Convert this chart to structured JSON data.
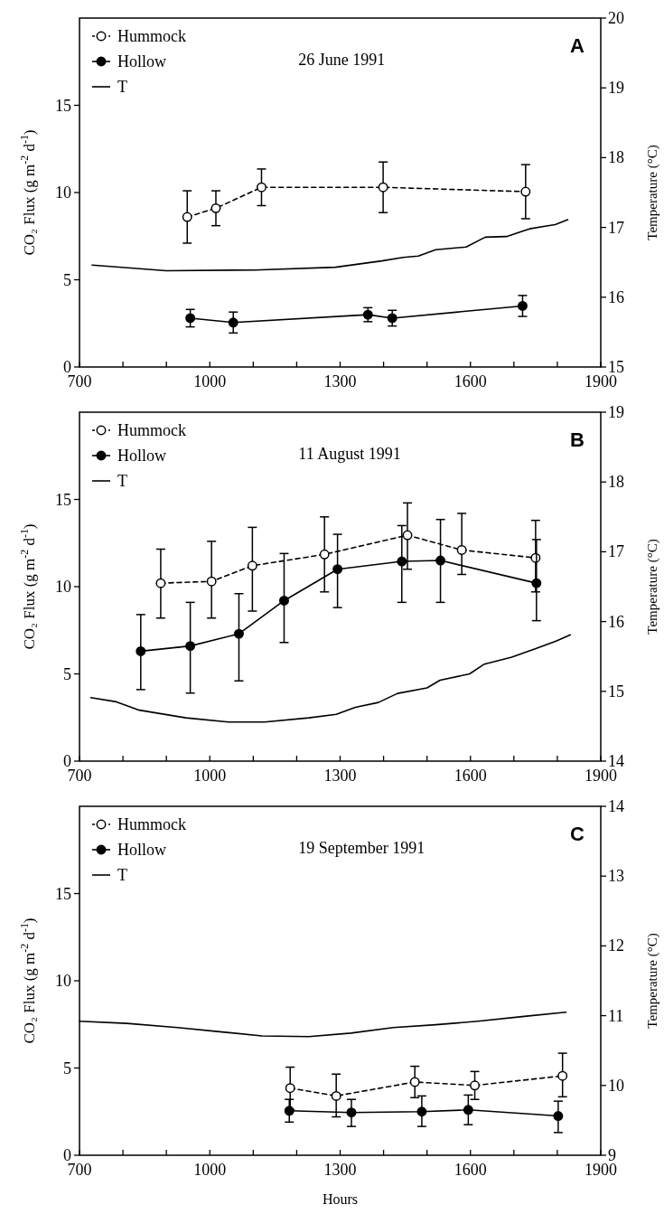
{
  "chart_data": [
    {
      "type": "line",
      "annotations": [
        "26 June 1991",
        "A"
      ],
      "ylabel": "CO₂ Flux (g m$^{-2}$ d$^{-1}$)",
      "y2label": "Temperature (°C)",
      "xlim": [
        700,
        1900
      ],
      "xticks": [
        700,
        {
          "value": 800,
          "label": null
        },
        {
          "value": 900,
          "label": null
        },
        1000,
        {
          "value": 1100,
          "label": null
        },
        {
          "value": 1200,
          "label": null
        },
        1300,
        {
          "value": 1400,
          "label": null
        },
        {
          "value": 1500,
          "label": null
        },
        1600,
        {
          "value": 1700,
          "label": null
        },
        {
          "value": 1800,
          "label": null
        },
        1900
      ],
      "ylim": [
        0,
        20
      ],
      "yticks": [
        0,
        5,
        10,
        15
      ],
      "y2lim": [
        15,
        20
      ],
      "y2ticks": [
        15,
        16,
        17,
        18,
        19,
        20
      ],
      "legend": "top left",
      "grid": false,
      "series": [
        {
          "name": "Hummock",
          "color": "#000000",
          "line_style": "dashed",
          "marker": "circle",
          "x": [
            948,
            1014,
            1119,
            1399,
            1727
          ],
          "values": [
            8.6,
            9.1,
            10.3,
            10.3,
            10.05
          ],
          "errors": [
            1.5,
            1.0,
            1.05,
            1.45,
            1.55
          ]
        },
        {
          "name": "Hollow",
          "color": "#000000",
          "line_style": "solid",
          "marker": "circle",
          "x": [
            955,
            1054,
            1364,
            1420,
            1720
          ],
          "values": [
            2.8,
            2.55,
            3.0,
            2.8,
            3.5
          ],
          "errors": [
            0.5,
            0.6,
            0.4,
            0.45,
            0.6
          ]
        },
        {
          "name": "T",
          "color": "#000000",
          "line_style": "solid",
          "marker": "none",
          "axis": "y2",
          "x": [
            729,
            900,
            1104,
            1289,
            1396,
            1445,
            1480,
            1520,
            1590,
            1634,
            1683,
            1736,
            1775,
            1795,
            1824
          ],
          "values": [
            16.46,
            16.38,
            16.39,
            16.43,
            16.52,
            16.57,
            16.59,
            16.68,
            16.72,
            16.86,
            16.87,
            16.98,
            17.02,
            17.04,
            17.11
          ]
        }
      ]
    },
    {
      "type": "line",
      "annotations": [
        "11 August 1991",
        "B"
      ],
      "ylabel": "CO₂ Flux (g m$^{-2}$ d$^{-1}$)",
      "y2label": "Temperature (°C)",
      "xlim": [
        700,
        1900
      ],
      "xticks": [
        700,
        {
          "value": 800,
          "label": null
        },
        {
          "value": 900,
          "label": null
        },
        1000,
        {
          "value": 1100,
          "label": null
        },
        {
          "value": 1200,
          "label": null
        },
        1300,
        {
          "value": 1400,
          "label": null
        },
        {
          "value": 1500,
          "label": null
        },
        1600,
        {
          "value": 1700,
          "label": null
        },
        {
          "value": 1800,
          "label": null
        },
        1900
      ],
      "ylim": [
        0,
        20
      ],
      "yticks": [
        0,
        5,
        10,
        15
      ],
      "y2lim": [
        14,
        19
      ],
      "y2ticks": [
        14,
        15,
        16,
        17,
        18,
        19
      ],
      "legend": "top left",
      "grid": false,
      "series": [
        {
          "name": "Hummock",
          "color": "#000000",
          "line_style": "dashed",
          "marker": "circle",
          "x": [
            887,
            1004,
            1098,
            1264,
            1455,
            1580,
            1750
          ],
          "values": [
            10.2,
            10.3,
            11.2,
            11.85,
            12.95,
            12.1,
            11.65
          ],
          "errors": [
            [
              8.2,
              12.15
            ],
            [
              8.2,
              12.6
            ],
            [
              8.6,
              13.4
            ],
            [
              9.7,
              14.0
            ],
            [
              11.0,
              14.8
            ],
            [
              10.7,
              14.2
            ],
            [
              9.7,
              13.8
            ]
          ]
        },
        {
          "name": "Hollow",
          "color": "#000000",
          "line_style": "solid",
          "marker": "circle",
          "x": [
            841,
            955,
            1067,
            1171,
            1294,
            1442,
            1531,
            1752
          ],
          "values": [
            6.3,
            6.6,
            7.3,
            9.2,
            11.0,
            11.45,
            11.5,
            10.2
          ],
          "errors": [
            [
              4.1,
              8.4
            ],
            [
              3.9,
              9.1
            ],
            [
              4.6,
              9.6
            ],
            [
              6.8,
              11.9
            ],
            [
              8.8,
              13.0
            ],
            [
              9.1,
              13.5
            ],
            [
              9.1,
              13.85
            ],
            [
              8.05,
              12.7
            ]
          ]
        },
        {
          "name": "T",
          "color": "#000000",
          "line_style": "solid",
          "marker": "none",
          "axis": "y2",
          "x": [
            726,
            785,
            838,
            945,
            1043,
            1126,
            1228,
            1291,
            1335,
            1388,
            1432,
            1500,
            1530,
            1598,
            1632,
            1695,
            1749,
            1797,
            1830
          ],
          "values": [
            14.91,
            14.85,
            14.73,
            14.62,
            14.56,
            14.56,
            14.62,
            14.67,
            14.77,
            14.84,
            14.97,
            15.05,
            15.16,
            15.25,
            15.39,
            15.49,
            15.61,
            15.72,
            15.81
          ]
        }
      ]
    },
    {
      "type": "line",
      "annotations": [
        "19 September 1991",
        "C"
      ],
      "xlabel": "Hours",
      "ylabel": "CO₂ Flux (g m$^{-2}$ d$^{-1}$)",
      "y2label": "Temperature (°C)",
      "xlim": [
        700,
        1900
      ],
      "xticks": [
        700,
        {
          "value": 800,
          "label": null
        },
        {
          "value": 900,
          "label": null
        },
        1000,
        {
          "value": 1100,
          "label": null
        },
        {
          "value": 1200,
          "label": null
        },
        1300,
        {
          "value": 1400,
          "label": null
        },
        {
          "value": 1500,
          "label": null
        },
        1600,
        {
          "value": 1700,
          "label": null
        },
        {
          "value": 1800,
          "label": null
        },
        1900
      ],
      "ylim": [
        0,
        20
      ],
      "yticks": [
        0,
        5,
        10,
        15
      ],
      "y2lim": [
        9,
        14
      ],
      "y2ticks": [
        9,
        10,
        11,
        12,
        13,
        14
      ],
      "legend": "top left",
      "grid": false,
      "series": [
        {
          "name": "Hummock",
          "color": "#000000",
          "line_style": "dashed",
          "marker": "circle",
          "x": [
            1185,
            1291,
            1472,
            1610,
            1812
          ],
          "values": [
            3.85,
            3.4,
            4.2,
            4.0,
            4.55
          ],
          "errors": [
            [
              2.6,
              5.05
            ],
            [
              2.2,
              4.65
            ],
            [
              3.3,
              5.1
            ],
            [
              3.2,
              4.8
            ],
            [
              3.35,
              5.85
            ]
          ]
        },
        {
          "name": "Hollow",
          "color": "#000000",
          "line_style": "solid",
          "marker": "circle",
          "x": [
            1183,
            1326,
            1488,
            1595,
            1802
          ],
          "values": [
            2.55,
            2.45,
            2.5,
            2.6,
            2.25
          ],
          "errors": [
            [
              1.9,
              3.2
            ],
            [
              1.65,
              3.2
            ],
            [
              1.65,
              3.4
            ],
            [
              1.75,
              3.45
            ],
            [
              1.3,
              3.1
            ]
          ]
        },
        {
          "name": "T",
          "color": "#000000",
          "line_style": "solid",
          "marker": "none",
          "axis": "y2",
          "x": [
            700,
            809,
            926,
            1023,
            1120,
            1228,
            1325,
            1422,
            1520,
            1617,
            1724,
            1820
          ],
          "values": [
            10.92,
            10.89,
            10.83,
            10.77,
            10.71,
            10.7,
            10.75,
            10.83,
            10.87,
            10.92,
            10.99,
            11.05
          ]
        }
      ]
    }
  ]
}
